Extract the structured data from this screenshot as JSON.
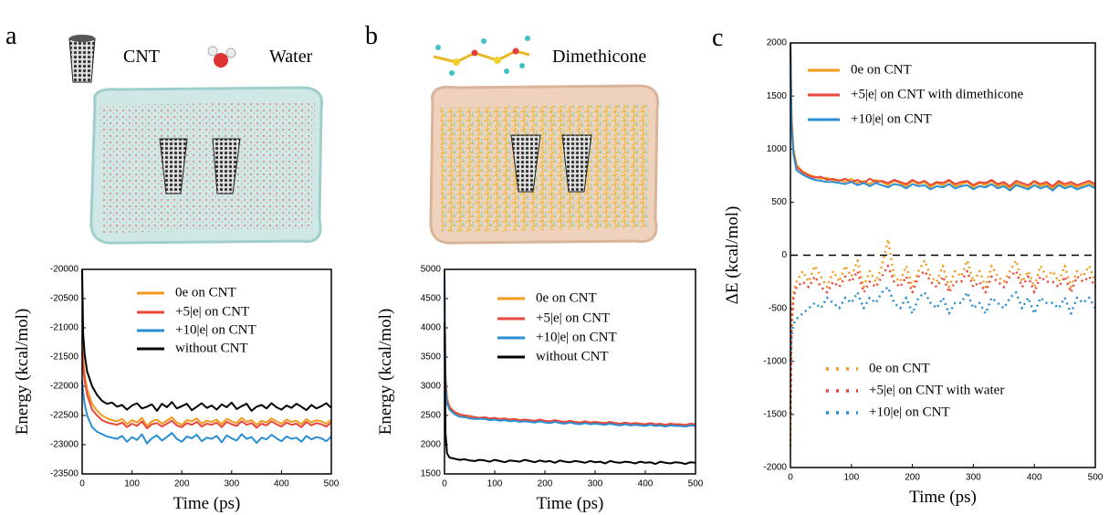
{
  "figure": {
    "panel_labels": [
      "a",
      "b",
      "c"
    ],
    "icon_labels": [
      "CNT",
      "Water",
      "Dimethicone"
    ]
  },
  "chart_data": [
    {
      "type": "line",
      "xlabel": "Time (ps)",
      "ylabel": "Energy (kcal/mol)",
      "xlim": [
        0,
        500
      ],
      "ylim": [
        -23500,
        -20000
      ],
      "xticks": [
        0,
        100,
        200,
        300,
        400,
        500
      ],
      "yticks": [
        -23500,
        -23000,
        -22500,
        -22000,
        -21500,
        -21000,
        -20500,
        -20000
      ],
      "x": [
        0,
        2,
        5,
        10,
        20,
        30,
        40,
        50,
        60,
        70,
        80,
        90,
        100,
        110,
        120,
        130,
        140,
        150,
        160,
        170,
        180,
        190,
        200,
        210,
        220,
        230,
        240,
        250,
        260,
        270,
        280,
        290,
        300,
        310,
        320,
        330,
        340,
        350,
        360,
        370,
        380,
        390,
        400,
        410,
        420,
        430,
        440,
        450,
        460,
        470,
        480,
        490,
        500
      ],
      "series": [
        {
          "name": "0e on CNT",
          "color": "#f39a1e",
          "style": "solid",
          "values": [
            -21200,
            -21500,
            -21800,
            -22050,
            -22300,
            -22420,
            -22500,
            -22550,
            -22580,
            -22600,
            -22560,
            -22650,
            -22580,
            -22620,
            -22540,
            -22680,
            -22600,
            -22570,
            -22640,
            -22590,
            -22530,
            -22620,
            -22660,
            -22580,
            -22600,
            -22550,
            -22640,
            -22590,
            -22610,
            -22570,
            -22650,
            -22560,
            -22600,
            -22630,
            -22540,
            -22610,
            -22580,
            -22660,
            -22590,
            -22620,
            -22550,
            -22600,
            -22640,
            -22570,
            -22610,
            -22590,
            -22650,
            -22560,
            -22620,
            -22580,
            -22600,
            -22640,
            -22570
          ]
        },
        {
          "name": "+5|e| on CNT",
          "color": "#e8473a",
          "style": "solid",
          "values": [
            -21400,
            -21650,
            -21900,
            -22150,
            -22400,
            -22500,
            -22580,
            -22620,
            -22640,
            -22660,
            -22620,
            -22700,
            -22640,
            -22680,
            -22600,
            -22720,
            -22650,
            -22630,
            -22690,
            -22640,
            -22590,
            -22670,
            -22700,
            -22630,
            -22660,
            -22610,
            -22690,
            -22640,
            -22660,
            -22620,
            -22700,
            -22610,
            -22650,
            -22680,
            -22600,
            -22660,
            -22630,
            -22710,
            -22640,
            -22670,
            -22600,
            -22650,
            -22690,
            -22620,
            -22660,
            -22640,
            -22700,
            -22610,
            -22670,
            -22630,
            -22650,
            -22690,
            -22620
          ]
        },
        {
          "name": "+10|e| on CNT",
          "color": "#2a8fd1",
          "style": "solid",
          "values": [
            -21900,
            -22100,
            -22300,
            -22500,
            -22700,
            -22780,
            -22820,
            -22860,
            -22880,
            -22900,
            -22850,
            -22950,
            -22870,
            -22920,
            -22820,
            -22980,
            -22890,
            -22840,
            -22930,
            -22870,
            -22800,
            -22900,
            -22950,
            -22860,
            -22890,
            -22830,
            -22940,
            -22880,
            -22900,
            -22850,
            -22960,
            -22840,
            -22890,
            -22930,
            -22820,
            -22900,
            -22870,
            -22970,
            -22880,
            -22910,
            -22830,
            -22890,
            -22940,
            -22860,
            -22900,
            -22880,
            -22950,
            -22850,
            -22910,
            -22870,
            -22890,
            -22940,
            -22860
          ]
        },
        {
          "name": "without CNT",
          "color": "#000000",
          "style": "solid",
          "values": [
            -20000,
            -21100,
            -21450,
            -21750,
            -22000,
            -22150,
            -22250,
            -22300,
            -22280,
            -22350,
            -22320,
            -22400,
            -22330,
            -22290,
            -22380,
            -22350,
            -22310,
            -22420,
            -22300,
            -22360,
            -22270,
            -22380,
            -22340,
            -22300,
            -22410,
            -22350,
            -22290,
            -22370,
            -22330,
            -22400,
            -22310,
            -22360,
            -22280,
            -22390,
            -22340,
            -22300,
            -22420,
            -22350,
            -22320,
            -22380,
            -22290,
            -22360,
            -22400,
            -22330,
            -22370,
            -22300,
            -22350,
            -22410,
            -22320,
            -22380,
            -22340,
            -22290,
            -22370
          ]
        }
      ]
    },
    {
      "type": "line",
      "xlabel": "Time (ps)",
      "ylabel": "Energy (kcal/mol)",
      "xlim": [
        0,
        500
      ],
      "ylim": [
        1500,
        5000
      ],
      "xticks": [
        0,
        100,
        200,
        300,
        400,
        500
      ],
      "yticks": [
        1500,
        2000,
        2500,
        3000,
        3500,
        4000,
        4500,
        5000
      ],
      "x": [
        0,
        2,
        5,
        10,
        20,
        30,
        40,
        50,
        60,
        70,
        80,
        90,
        100,
        110,
        120,
        130,
        140,
        150,
        160,
        170,
        180,
        190,
        200,
        210,
        220,
        230,
        240,
        250,
        260,
        270,
        280,
        290,
        300,
        310,
        320,
        330,
        340,
        350,
        360,
        370,
        380,
        390,
        400,
        410,
        420,
        430,
        440,
        450,
        460,
        470,
        480,
        490,
        500
      ],
      "series": [
        {
          "name": "0e on CNT",
          "color": "#f39a1e",
          "style": "solid",
          "values": [
            5000,
            3200,
            2800,
            2650,
            2550,
            2510,
            2490,
            2470,
            2460,
            2450,
            2460,
            2430,
            2450,
            2420,
            2440,
            2410,
            2430,
            2400,
            2420,
            2410,
            2390,
            2420,
            2400,
            2380,
            2410,
            2390,
            2370,
            2400,
            2380,
            2370,
            2390,
            2360,
            2380,
            2370,
            2350,
            2380,
            2360,
            2350,
            2370,
            2340,
            2360,
            2350,
            2330,
            2360,
            2340,
            2350,
            2320,
            2350,
            2330,
            2340,
            2320,
            2350,
            2330
          ]
        },
        {
          "name": "+5|e| on CNT",
          "color": "#e8473a",
          "style": "solid",
          "values": [
            4800,
            3100,
            2760,
            2640,
            2560,
            2520,
            2500,
            2490,
            2470,
            2460,
            2470,
            2450,
            2460,
            2440,
            2450,
            2430,
            2440,
            2420,
            2430,
            2420,
            2410,
            2430,
            2410,
            2400,
            2420,
            2400,
            2390,
            2410,
            2390,
            2380,
            2400,
            2380,
            2390,
            2380,
            2370,
            2390,
            2370,
            2360,
            2380,
            2360,
            2370,
            2360,
            2350,
            2370,
            2350,
            2360,
            2340,
            2360,
            2350,
            2350,
            2340,
            2360,
            2350
          ]
        },
        {
          "name": "+10|e| on CNT",
          "color": "#2a8fd1",
          "style": "solid",
          "values": [
            4900,
            3000,
            2700,
            2600,
            2520,
            2480,
            2470,
            2450,
            2440,
            2440,
            2440,
            2420,
            2430,
            2410,
            2420,
            2400,
            2410,
            2390,
            2400,
            2390,
            2380,
            2400,
            2380,
            2370,
            2390,
            2370,
            2360,
            2380,
            2360,
            2350,
            2370,
            2350,
            2360,
            2350,
            2340,
            2360,
            2340,
            2330,
            2350,
            2330,
            2340,
            2330,
            2320,
            2340,
            2320,
            2330,
            2310,
            2330,
            2320,
            2320,
            2310,
            2330,
            2320
          ]
        },
        {
          "name": "without CNT",
          "color": "#000000",
          "style": "solid",
          "values": [
            4100,
            2200,
            1850,
            1780,
            1760,
            1740,
            1750,
            1730,
            1720,
            1740,
            1730,
            1710,
            1740,
            1720,
            1700,
            1730,
            1720,
            1710,
            1740,
            1720,
            1700,
            1730,
            1710,
            1720,
            1690,
            1730,
            1710,
            1700,
            1720,
            1710,
            1690,
            1720,
            1700,
            1710,
            1680,
            1720,
            1700,
            1690,
            1710,
            1700,
            1680,
            1710,
            1690,
            1700,
            1670,
            1710,
            1690,
            1680,
            1700,
            1690,
            1670,
            1700,
            1690
          ]
        }
      ]
    },
    {
      "type": "line",
      "xlabel": "Time (ps)",
      "ylabel": "ΔE (kcal/mol)",
      "xlim": [
        0,
        500
      ],
      "ylim": [
        -2000,
        2000
      ],
      "xticks": [
        0,
        100,
        200,
        300,
        400,
        500
      ],
      "yticks": [
        -2000,
        -1500,
        -1000,
        -500,
        0,
        500,
        1000,
        1500,
        2000
      ],
      "reference_line": 0,
      "x": [
        0,
        2,
        5,
        10,
        20,
        30,
        40,
        50,
        60,
        70,
        80,
        90,
        100,
        110,
        120,
        130,
        140,
        150,
        160,
        170,
        180,
        190,
        200,
        210,
        220,
        230,
        240,
        250,
        260,
        270,
        280,
        290,
        300,
        310,
        320,
        330,
        340,
        350,
        360,
        370,
        380,
        390,
        400,
        410,
        420,
        430,
        440,
        450,
        460,
        470,
        480,
        490,
        500
      ],
      "series": [
        {
          "name": "0e on CNT",
          "color": "#f39a1e",
          "style": "solid",
          "values": [
            2000,
            1300,
            1000,
            850,
            790,
            760,
            740,
            720,
            730,
            700,
            710,
            690,
            720,
            680,
            700,
            670,
            710,
            690,
            660,
            700,
            680,
            650,
            700,
            670,
            690,
            640,
            680,
            660,
            700,
            650,
            670,
            690,
            640,
            680,
            660,
            700,
            650,
            670,
            630,
            680,
            660,
            640,
            690,
            650,
            670,
            630,
            680,
            650,
            670,
            640,
            660,
            680,
            650
          ]
        },
        {
          "name": "+5|e| on CNT with dimethicone",
          "color": "#e8473a",
          "style": "solid",
          "values": [
            2000,
            1250,
            980,
            830,
            780,
            750,
            730,
            740,
            710,
            720,
            700,
            720,
            690,
            710,
            680,
            720,
            690,
            700,
            680,
            710,
            690,
            670,
            710,
            680,
            700,
            660,
            690,
            680,
            710,
            670,
            690,
            700,
            660,
            690,
            680,
            710,
            670,
            690,
            650,
            700,
            680,
            660,
            700,
            670,
            690,
            650,
            700,
            670,
            690,
            660,
            680,
            700,
            670
          ]
        },
        {
          "name": "+10|e| on CNT",
          "color": "#2a8fd1",
          "style": "solid",
          "values": [
            2000,
            1200,
            950,
            800,
            760,
            730,
            710,
            700,
            690,
            690,
            680,
            670,
            690,
            660,
            680,
            650,
            680,
            660,
            640,
            670,
            660,
            630,
            670,
            650,
            660,
            620,
            650,
            640,
            670,
            630,
            650,
            660,
            620,
            650,
            640,
            670,
            630,
            650,
            610,
            660,
            640,
            620,
            660,
            630,
            650,
            610,
            660,
            630,
            650,
            620,
            640,
            660,
            630
          ]
        },
        {
          "name": "0e on CNT",
          "color": "#f39a1e",
          "style": "dotted",
          "values": [
            -1800,
            -700,
            -350,
            -250,
            -150,
            -250,
            -100,
            -200,
            -300,
            -150,
            -250,
            -100,
            -200,
            -50,
            -300,
            -150,
            -250,
            -100,
            150,
            -200,
            -250,
            -100,
            -300,
            -150,
            -50,
            -200,
            -250,
            -100,
            -300,
            -150,
            -200,
            -50,
            -250,
            -150,
            -300,
            -100,
            -200,
            -250,
            -150,
            -50,
            -250,
            -150,
            -300,
            -100,
            -200,
            -150,
            -250,
            -100,
            -300,
            -150,
            -200,
            -100,
            -250
          ]
        },
        {
          "name": "+5|e| on CNT with water",
          "color": "#e8473a",
          "style": "dotted",
          "values": [
            -1500,
            -600,
            -400,
            -300,
            -250,
            -300,
            -200,
            -300,
            -350,
            -250,
            -300,
            -200,
            -250,
            -150,
            -350,
            -250,
            -300,
            -200,
            -100,
            -250,
            -300,
            -200,
            -350,
            -200,
            -150,
            -250,
            -300,
            -200,
            -350,
            -250,
            -250,
            -150,
            -300,
            -250,
            -350,
            -200,
            -250,
            -300,
            -200,
            -150,
            -300,
            -200,
            -350,
            -200,
            -250,
            -250,
            -300,
            -200,
            -350,
            -200,
            -250,
            -200,
            -300
          ]
        },
        {
          "name": "+10|e| on CNT",
          "color": "#2a8fd1",
          "style": "dotted",
          "values": [
            -1000,
            -750,
            -650,
            -600,
            -550,
            -500,
            -450,
            -500,
            -400,
            -450,
            -500,
            -400,
            -450,
            -350,
            -500,
            -400,
            -450,
            -350,
            -300,
            -450,
            -500,
            -400,
            -550,
            -400,
            -350,
            -450,
            -500,
            -400,
            -550,
            -450,
            -450,
            -350,
            -500,
            -450,
            -550,
            -400,
            -450,
            -500,
            -400,
            -350,
            -500,
            -400,
            -550,
            -400,
            -450,
            -450,
            -500,
            -400,
            -550,
            -400,
            -450,
            -400,
            -500
          ]
        }
      ]
    }
  ]
}
